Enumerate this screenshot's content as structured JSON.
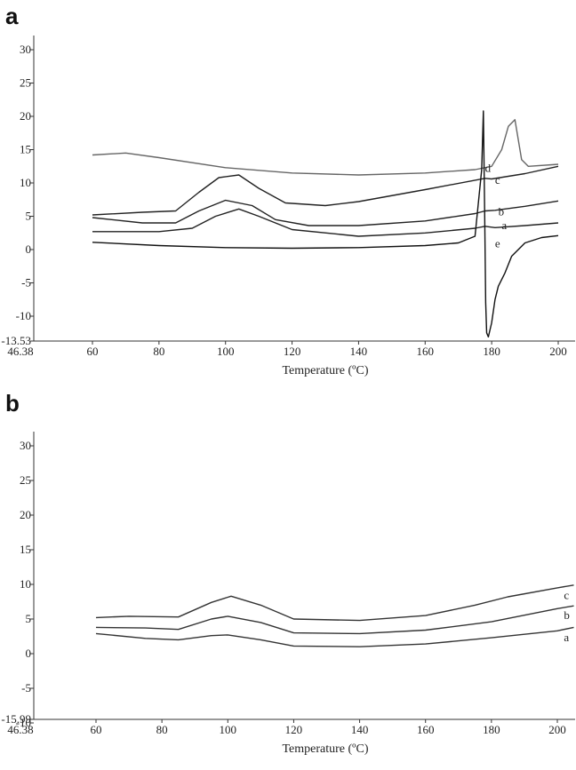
{
  "chart_data": [
    {
      "panel": "a",
      "type": "line",
      "title": "",
      "xlabel": "Temperature (ºC)",
      "ylabel": "",
      "xlim": [
        46.38,
        200
      ],
      "ylim": [
        -13.53,
        30
      ],
      "x_ticks": [
        "46.38",
        "60",
        "80",
        "100",
        "120",
        "140",
        "160",
        "180",
        "200"
      ],
      "y_ticks": [
        "-13.53",
        "-10",
        "-5",
        "0",
        "5",
        "10",
        "15",
        "20",
        "25",
        "30"
      ],
      "grid": false,
      "series": [
        {
          "name": "a",
          "color": "#222222",
          "x": [
            60,
            80,
            90,
            97,
            104,
            110,
            120,
            140,
            160,
            175,
            178,
            181,
            190,
            200
          ],
          "y": [
            2.7,
            2.7,
            3.2,
            5.0,
            6.1,
            5.0,
            3.0,
            2.0,
            2.5,
            3.2,
            3.5,
            3.3,
            3.6,
            4.0
          ]
        },
        {
          "name": "b",
          "color": "#222222",
          "x": [
            60,
            75,
            85,
            92,
            100,
            108,
            115,
            125,
            140,
            160,
            175,
            178,
            181,
            190,
            200
          ],
          "y": [
            4.8,
            4.0,
            4.0,
            5.8,
            7.4,
            6.6,
            4.5,
            3.6,
            3.6,
            4.3,
            5.4,
            5.8,
            5.9,
            6.5,
            7.3
          ]
        },
        {
          "name": "c",
          "color": "#222222",
          "x": [
            60,
            75,
            85,
            92,
            98,
            104,
            110,
            118,
            130,
            140,
            160,
            178,
            180,
            190,
            200
          ],
          "y": [
            5.2,
            5.6,
            5.8,
            8.6,
            10.8,
            11.2,
            9.2,
            7.0,
            6.6,
            7.2,
            9.0,
            10.7,
            10.6,
            11.4,
            12.5
          ]
        },
        {
          "name": "d",
          "color": "#666666",
          "x": [
            60,
            70,
            80,
            100,
            120,
            140,
            160,
            175,
            180,
            183,
            185,
            187,
            189,
            191,
            200
          ],
          "y": [
            14.2,
            14.5,
            13.8,
            12.3,
            11.5,
            11.2,
            11.5,
            12.0,
            12.5,
            15.0,
            18.5,
            19.5,
            13.5,
            12.5,
            12.8
          ]
        },
        {
          "name": "e",
          "color": "#111111",
          "x": [
            60,
            80,
            100,
            120,
            140,
            160,
            170,
            175,
            177,
            177.5,
            177.9,
            178.2,
            178.5,
            179,
            180,
            181,
            182,
            184,
            186,
            190,
            195,
            200
          ],
          "y": [
            1.1,
            0.6,
            0.3,
            0.2,
            0.3,
            0.6,
            1.0,
            2.0,
            12.0,
            20.8,
            5.0,
            -8.0,
            -12.5,
            -13.1,
            -11.0,
            -7.5,
            -5.5,
            -3.5,
            -1.0,
            1.0,
            1.8,
            2.1
          ]
        }
      ]
    },
    {
      "panel": "b",
      "type": "line",
      "title": "",
      "xlabel": "Temperature (ºC)",
      "ylabel": "",
      "xlim": [
        46.38,
        205
      ],
      "ylim": [
        -15.99,
        35
      ],
      "x_ticks": [
        "46.38",
        "60",
        "80",
        "100",
        "120",
        "140",
        "160",
        "180",
        "200"
      ],
      "y_ticks": [
        "-15.99",
        "-10",
        "-5",
        "0",
        "5",
        "10",
        "15",
        "20",
        "25",
        "30"
      ],
      "grid": false,
      "series": [
        {
          "name": "a",
          "color": "#333333",
          "x": [
            60,
            75,
            85,
            95,
            100,
            110,
            120,
            140,
            160,
            180,
            200,
            205
          ],
          "y": [
            2.9,
            2.2,
            2.0,
            2.6,
            2.7,
            2.0,
            1.1,
            1.0,
            1.4,
            2.3,
            3.3,
            3.8
          ]
        },
        {
          "name": "b",
          "color": "#333333",
          "x": [
            60,
            75,
            85,
            95,
            100,
            110,
            120,
            140,
            160,
            180,
            200,
            205
          ],
          "y": [
            3.8,
            3.7,
            3.5,
            5.0,
            5.4,
            4.5,
            3.0,
            2.9,
            3.4,
            4.6,
            6.5,
            6.9
          ]
        },
        {
          "name": "c",
          "color": "#333333",
          "x": [
            60,
            70,
            85,
            95,
            101,
            110,
            120,
            140,
            160,
            175,
            185,
            200,
            205
          ],
          "y": [
            5.2,
            5.4,
            5.3,
            7.4,
            8.3,
            7.0,
            5.0,
            4.8,
            5.5,
            7.0,
            8.2,
            9.5,
            9.9
          ]
        }
      ]
    }
  ],
  "panel_letters": [
    "a",
    "b"
  ]
}
